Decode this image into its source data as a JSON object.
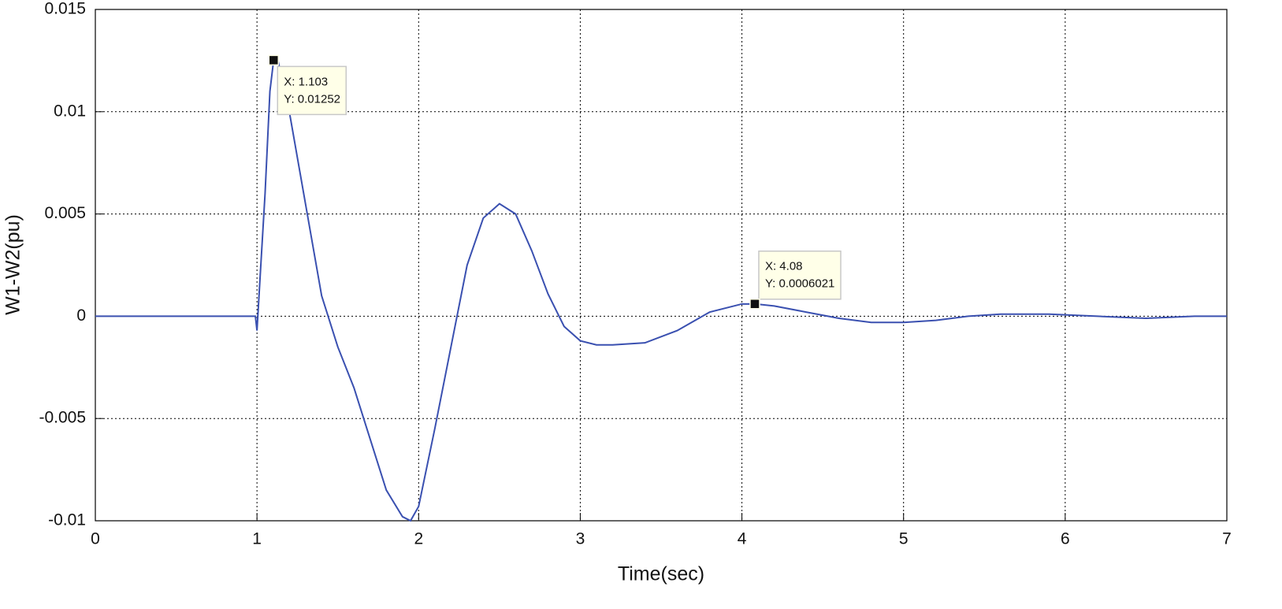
{
  "chart_data": {
    "type": "line",
    "xlabel": "Time(sec)",
    "ylabel": "W1-W2(pu)",
    "xlim": [
      0,
      7
    ],
    "xticks": [
      0,
      1,
      2,
      3,
      4,
      5,
      6,
      7
    ],
    "ylim": [
      -0.01,
      0.015
    ],
    "yticks": [
      -0.01,
      -0.005,
      0,
      0.005,
      0.01,
      0.015
    ],
    "grid": true,
    "x": [
      0,
      0.4,
      0.99,
      1.0,
      1.02,
      1.05,
      1.08,
      1.103,
      1.13,
      1.2,
      1.3,
      1.4,
      1.5,
      1.6,
      1.7,
      1.8,
      1.9,
      1.95,
      2.0,
      2.1,
      2.2,
      2.3,
      2.4,
      2.5,
      2.6,
      2.7,
      2.8,
      2.9,
      3.0,
      3.1,
      3.2,
      3.4,
      3.6,
      3.8,
      4.0,
      4.08,
      4.2,
      4.4,
      4.6,
      4.8,
      5.0,
      5.2,
      5.4,
      5.6,
      5.9,
      6.2,
      6.5,
      6.8,
      7
    ],
    "series": [
      {
        "name": "W1-W2",
        "color": "#3a50b0",
        "values": [
          0,
          0,
          0,
          -0.0007,
          0.002,
          0.006,
          0.011,
          0.01252,
          0.0125,
          0.01,
          0.0055,
          0.001,
          -0.0015,
          -0.0035,
          -0.006,
          -0.0085,
          -0.0098,
          -0.01,
          -0.0093,
          -0.0055,
          -0.0015,
          0.0025,
          0.0048,
          0.0055,
          0.005,
          0.0032,
          0.0011,
          -0.0005,
          -0.0012,
          -0.0014,
          -0.0014,
          -0.0013,
          -0.0007,
          0.0002,
          0.0006,
          0.0006021,
          0.0005,
          0.0002,
          -0.0001,
          -0.0003,
          -0.0003,
          -0.0002,
          0,
          0.0001,
          0.0001,
          0,
          -0.0001,
          0,
          0
        ]
      }
    ],
    "datatips": [
      {
        "x": 1.103,
        "y": 0.01252,
        "x_text": "X: 1.103",
        "y_text": "Y: 0.01252"
      },
      {
        "x": 4.08,
        "y": 0.0006021,
        "x_text": "X: 4.08",
        "y_text": "Y: 0.0006021"
      }
    ]
  }
}
